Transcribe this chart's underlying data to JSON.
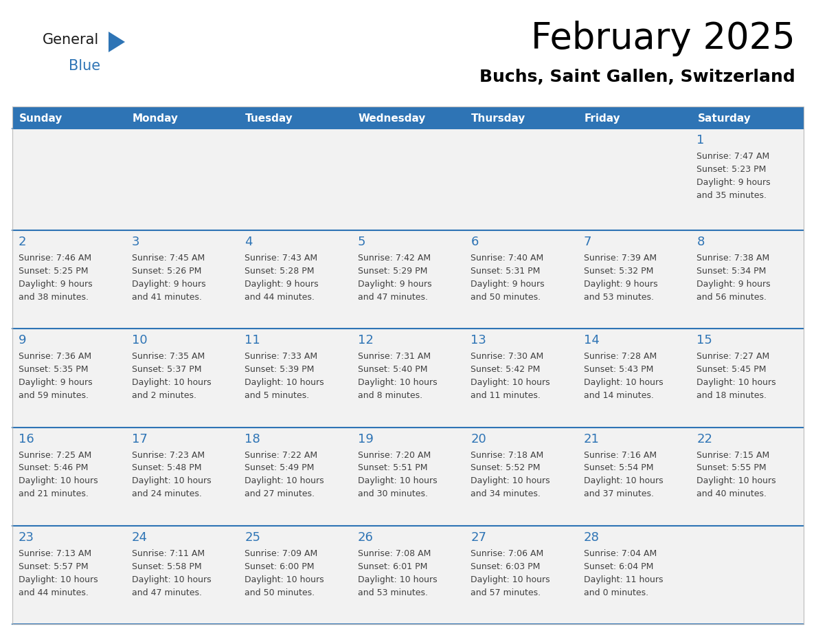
{
  "title": "February 2025",
  "subtitle": "Buchs, Saint Gallen, Switzerland",
  "days_of_week": [
    "Sunday",
    "Monday",
    "Tuesday",
    "Wednesday",
    "Thursday",
    "Friday",
    "Saturday"
  ],
  "header_bg": "#2E74B5",
  "header_text": "#FFFFFF",
  "cell_bg": "#F2F2F2",
  "separator_color": "#2E74B5",
  "day_num_color": "#2E74B5",
  "text_color": "#404040",
  "title_color": "#000000",
  "subtitle_color": "#000000",
  "logo_general_color": "#1a1a1a",
  "logo_blue_color": "#2E74B5",
  "calendar_data": [
    [
      null,
      null,
      null,
      null,
      null,
      null,
      {
        "day": 1,
        "sunrise": "7:47 AM",
        "sunset": "5:23 PM",
        "daylight": "9 hours",
        "daylight2": "and 35 minutes."
      }
    ],
    [
      {
        "day": 2,
        "sunrise": "7:46 AM",
        "sunset": "5:25 PM",
        "daylight": "9 hours",
        "daylight2": "and 38 minutes."
      },
      {
        "day": 3,
        "sunrise": "7:45 AM",
        "sunset": "5:26 PM",
        "daylight": "9 hours",
        "daylight2": "and 41 minutes."
      },
      {
        "day": 4,
        "sunrise": "7:43 AM",
        "sunset": "5:28 PM",
        "daylight": "9 hours",
        "daylight2": "and 44 minutes."
      },
      {
        "day": 5,
        "sunrise": "7:42 AM",
        "sunset": "5:29 PM",
        "daylight": "9 hours",
        "daylight2": "and 47 minutes."
      },
      {
        "day": 6,
        "sunrise": "7:40 AM",
        "sunset": "5:31 PM",
        "daylight": "9 hours",
        "daylight2": "and 50 minutes."
      },
      {
        "day": 7,
        "sunrise": "7:39 AM",
        "sunset": "5:32 PM",
        "daylight": "9 hours",
        "daylight2": "and 53 minutes."
      },
      {
        "day": 8,
        "sunrise": "7:38 AM",
        "sunset": "5:34 PM",
        "daylight": "9 hours",
        "daylight2": "and 56 minutes."
      }
    ],
    [
      {
        "day": 9,
        "sunrise": "7:36 AM",
        "sunset": "5:35 PM",
        "daylight": "9 hours",
        "daylight2": "and 59 minutes."
      },
      {
        "day": 10,
        "sunrise": "7:35 AM",
        "sunset": "5:37 PM",
        "daylight": "10 hours",
        "daylight2": "and 2 minutes."
      },
      {
        "day": 11,
        "sunrise": "7:33 AM",
        "sunset": "5:39 PM",
        "daylight": "10 hours",
        "daylight2": "and 5 minutes."
      },
      {
        "day": 12,
        "sunrise": "7:31 AM",
        "sunset": "5:40 PM",
        "daylight": "10 hours",
        "daylight2": "and 8 minutes."
      },
      {
        "day": 13,
        "sunrise": "7:30 AM",
        "sunset": "5:42 PM",
        "daylight": "10 hours",
        "daylight2": "and 11 minutes."
      },
      {
        "day": 14,
        "sunrise": "7:28 AM",
        "sunset": "5:43 PM",
        "daylight": "10 hours",
        "daylight2": "and 14 minutes."
      },
      {
        "day": 15,
        "sunrise": "7:27 AM",
        "sunset": "5:45 PM",
        "daylight": "10 hours",
        "daylight2": "and 18 minutes."
      }
    ],
    [
      {
        "day": 16,
        "sunrise": "7:25 AM",
        "sunset": "5:46 PM",
        "daylight": "10 hours",
        "daylight2": "and 21 minutes."
      },
      {
        "day": 17,
        "sunrise": "7:23 AM",
        "sunset": "5:48 PM",
        "daylight": "10 hours",
        "daylight2": "and 24 minutes."
      },
      {
        "day": 18,
        "sunrise": "7:22 AM",
        "sunset": "5:49 PM",
        "daylight": "10 hours",
        "daylight2": "and 27 minutes."
      },
      {
        "day": 19,
        "sunrise": "7:20 AM",
        "sunset": "5:51 PM",
        "daylight": "10 hours",
        "daylight2": "and 30 minutes."
      },
      {
        "day": 20,
        "sunrise": "7:18 AM",
        "sunset": "5:52 PM",
        "daylight": "10 hours",
        "daylight2": "and 34 minutes."
      },
      {
        "day": 21,
        "sunrise": "7:16 AM",
        "sunset": "5:54 PM",
        "daylight": "10 hours",
        "daylight2": "and 37 minutes."
      },
      {
        "day": 22,
        "sunrise": "7:15 AM",
        "sunset": "5:55 PM",
        "daylight": "10 hours",
        "daylight2": "and 40 minutes."
      }
    ],
    [
      {
        "day": 23,
        "sunrise": "7:13 AM",
        "sunset": "5:57 PM",
        "daylight": "10 hours",
        "daylight2": "and 44 minutes."
      },
      {
        "day": 24,
        "sunrise": "7:11 AM",
        "sunset": "5:58 PM",
        "daylight": "10 hours",
        "daylight2": "and 47 minutes."
      },
      {
        "day": 25,
        "sunrise": "7:09 AM",
        "sunset": "6:00 PM",
        "daylight": "10 hours",
        "daylight2": "and 50 minutes."
      },
      {
        "day": 26,
        "sunrise": "7:08 AM",
        "sunset": "6:01 PM",
        "daylight": "10 hours",
        "daylight2": "and 53 minutes."
      },
      {
        "day": 27,
        "sunrise": "7:06 AM",
        "sunset": "6:03 PM",
        "daylight": "10 hours",
        "daylight2": "and 57 minutes."
      },
      {
        "day": 28,
        "sunrise": "7:04 AM",
        "sunset": "6:04 PM",
        "daylight": "11 hours",
        "daylight2": "and 0 minutes."
      },
      null
    ]
  ],
  "figsize": [
    11.88,
    9.18
  ],
  "dpi": 100
}
